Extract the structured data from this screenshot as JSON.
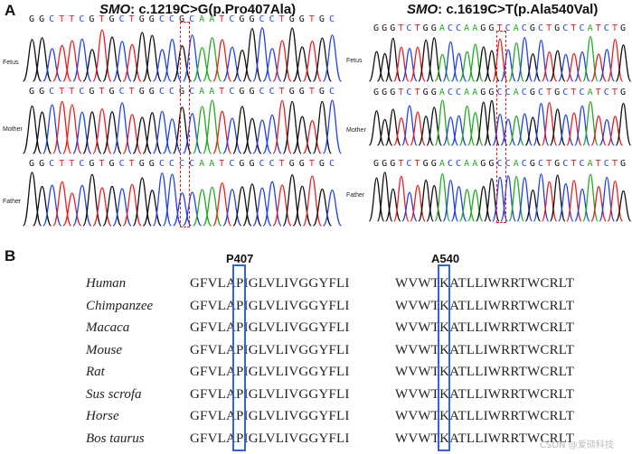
{
  "panel_a": {
    "letter": "A",
    "left": {
      "gene": "SMO",
      "variant": ": c.1219C>G(p.Pro407Ala)",
      "rows": [
        {
          "label": "Fetus",
          "seq": "GGCTTCGTGCTGGCCGCAATCGGCCTGGTGC"
        },
        {
          "label": "Mother",
          "seq": "GGCTTCGTGCTGGCCGCAATCGGCCTGGTGC"
        },
        {
          "label": "Father",
          "seq": "GGCTTCGTGCTGGCCCCAATCGGCCTGGTGC"
        }
      ]
    },
    "right": {
      "gene": "SMO",
      "variant": ": c.1619C>T(p.Ala540Val)",
      "rows": [
        {
          "label": "Fetus",
          "seq": "GGGTCTGGACCAAGGTCACGCTGCTCATCTG"
        },
        {
          "label": "Mother",
          "seq": "GGGTCTGGACCAAGGCCACGCTGCTCATCTG"
        },
        {
          "label": "Father",
          "seq": "GGGTCTGGACCAAGGCCACGCTGCTCATCTG"
        }
      ]
    }
  },
  "panel_b": {
    "letter": "B",
    "pos1": "P407",
    "pos2": "A540",
    "rows": [
      {
        "species": "Human",
        "seq1": "GFVLAPIGLVLIVGGYFLI",
        "seq2": "WVWTKATLLIWRRTWCRLT"
      },
      {
        "species": "Chimpanzee",
        "seq1": "GFVLAPIGLVLIVGGYFLI",
        "seq2": "WVWTKATLLIWRRTWCRLT"
      },
      {
        "species": "Macaca",
        "seq1": "GFVLAPIGLVLIVGGYFLI",
        "seq2": "WVWTKATLLIWRRTWCRLT"
      },
      {
        "species": "Mouse",
        "seq1": "GFVLAPIGLVLIVGGYFLI",
        "seq2": "WVWTKATLLIWRRTWCRLT"
      },
      {
        "species": "Rat",
        "seq1": "GFVLAPIGLVLIVGGYFLI",
        "seq2": "WVWTKATLLIWRRTWCRLT"
      },
      {
        "species": "Sus scrofa",
        "seq1": "GFVLAPIGLVLIVGGYFLI",
        "seq2": "WVWTKATLLIWRRTWCRLT"
      },
      {
        "species": "Horse",
        "seq1": "GFVLAPIGLVLIVGGYFLI",
        "seq2": "WVWTKATLLIWRRTWCRLT"
      },
      {
        "species": "Bos taurus",
        "seq1": "GFVLAPIGLVLIVGGYFLI",
        "seq2": "WVWTKATLLIWRRTWCRLT"
      }
    ]
  },
  "watermark": "CSDN @爱硕科技",
  "colors": {
    "A": "#22aa22",
    "C": "#2244dd",
    "G": "#111111",
    "T": "#e52020",
    "highlight": "#e52020",
    "box": "#3366cc"
  }
}
